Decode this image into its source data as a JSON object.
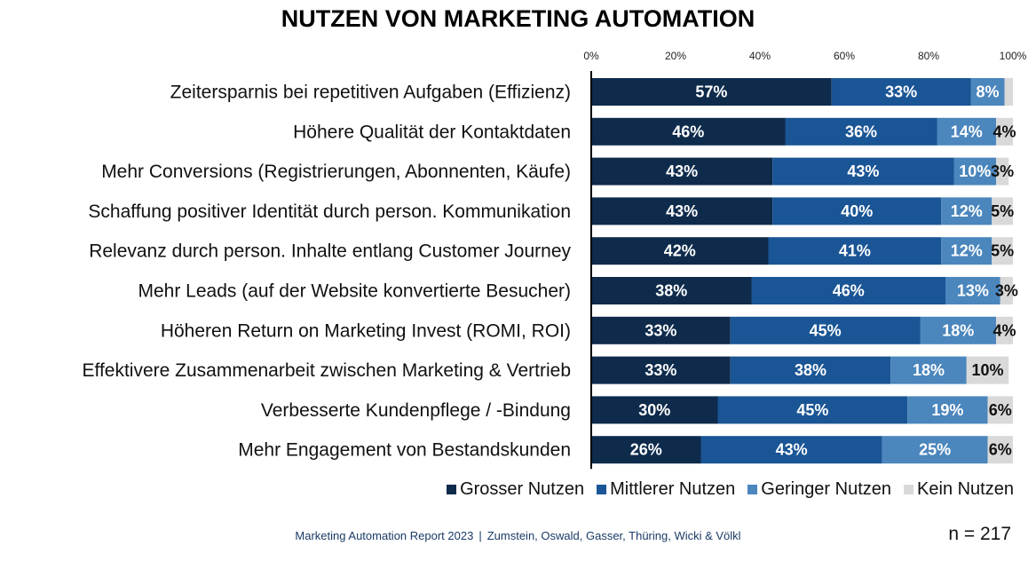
{
  "chart_data": {
    "type": "bar",
    "orientation": "horizontal",
    "stacked": true,
    "title": "NUTZEN VON MARKETING AUTOMATION",
    "categories": [
      "Zeitersparnis bei repetitiven Aufgaben (Effizienz)",
      "Höhere Qualität der Kontaktdaten",
      "Mehr Conversions (Registrierungen, Abonnenten, Käufe)",
      "Schaffung positiver Identität durch person. Kommunikation",
      "Relevanz durch person. Inhalte entlang Customer Journey",
      "Mehr Leads (auf der Website konvertierte Besucher)",
      "Höheren Return on Marketing Invest (ROMI, ROI)",
      "Effektivere Zusammenarbeit zwischen Marketing & Vertrieb",
      "Verbesserte Kundenpflege / -Bindung",
      "Mehr Engagement von Bestandskunden"
    ],
    "series": [
      {
        "name": "Grosser Nutzen",
        "color": "#0e2b4c",
        "label_color": "#ffffff",
        "values": [
          57,
          46,
          43,
          43,
          42,
          38,
          33,
          33,
          30,
          26
        ]
      },
      {
        "name": "Mittlerer Nutzen",
        "color": "#1a5595",
        "label_color": "#ffffff",
        "values": [
          33,
          36,
          43,
          40,
          41,
          46,
          45,
          38,
          45,
          43
        ]
      },
      {
        "name": "Geringer Nutzen",
        "color": "#4b86bd",
        "label_color": "#ffffff",
        "values": [
          8,
          14,
          10,
          12,
          12,
          13,
          18,
          18,
          19,
          25
        ]
      },
      {
        "name": "Kein Nutzen",
        "color": "#d9d9d9",
        "label_color": "#111111",
        "values": [
          2,
          4,
          3,
          5,
          5,
          3,
          4,
          10,
          6,
          6
        ]
      }
    ],
    "data_labels": [
      [
        "57%",
        "46%",
        "43%",
        "43%",
        "42%",
        "38%",
        "33%",
        "33%",
        "30%",
        "26%"
      ],
      [
        "33%",
        "36%",
        "43%",
        "40%",
        "41%",
        "46%",
        "45%",
        "38%",
        "45%",
        "43%"
      ],
      [
        "8%",
        "14%",
        "10%",
        "12%",
        "12%",
        "13%",
        "18%",
        "18%",
        "19%",
        "25%"
      ],
      [
        "",
        "4%",
        "3%",
        "5%",
        "5%",
        "3%",
        "4%",
        "10%",
        "6%",
        "6%"
      ]
    ],
    "x_ticks": [
      "0%",
      "20%",
      "40%",
      "60%",
      "80%",
      "100%"
    ],
    "xlim": [
      0,
      100
    ],
    "legend_position": "bottom-right"
  },
  "footer": {
    "source": "Marketing Automation Report 2023",
    "separator": "|",
    "authors": "Zumstein, Oswald, Gasser, Thüring, Wicki & Völkl",
    "sample_size": "n = 217"
  }
}
